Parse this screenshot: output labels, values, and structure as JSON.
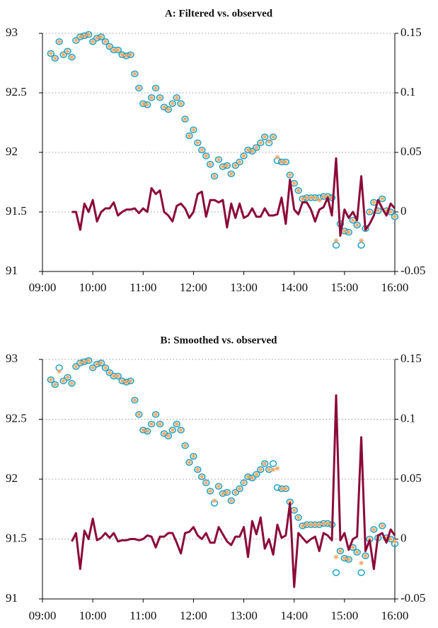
{
  "chart_data": [
    {
      "type": "combo",
      "title": "A: Filtered vs. observed",
      "x": [
        550,
        555,
        560,
        565,
        570,
        575,
        580,
        585,
        590,
        595,
        600,
        605,
        610,
        615,
        620,
        625,
        630,
        635,
        640,
        645,
        650,
        655,
        660,
        665,
        670,
        675,
        680,
        685,
        690,
        695,
        700,
        705,
        710,
        715,
        720,
        725,
        730,
        735,
        740,
        745,
        750,
        755,
        760,
        765,
        770,
        775,
        780,
        785,
        790,
        795,
        800,
        805,
        810,
        815,
        820,
        825,
        830,
        835,
        840,
        845,
        850,
        855,
        860,
        865,
        870,
        875,
        880,
        885,
        890,
        895,
        900,
        905,
        910,
        915,
        920,
        925,
        930,
        935,
        940,
        945,
        950,
        955,
        960
      ],
      "xlim": [
        540,
        960
      ],
      "xticks": [
        {
          "value": 540,
          "label": "09:00"
        },
        {
          "value": 600,
          "label": "10:00"
        },
        {
          "value": 660,
          "label": "11:00"
        },
        {
          "value": 720,
          "label": "12:00"
        },
        {
          "value": 780,
          "label": "13:00"
        },
        {
          "value": 840,
          "label": "14:00"
        },
        {
          "value": 900,
          "label": "15:00"
        },
        {
          "value": 960,
          "label": "16:00"
        }
      ],
      "ylim": [
        91,
        93
      ],
      "yticks": [
        91,
        91.5,
        92,
        92.5,
        93
      ],
      "y2lim": [
        -0.05,
        0.15
      ],
      "y2ticks": [
        -0.05,
        0,
        0.05,
        0.1,
        0.15
      ],
      "grid": true,
      "series": [
        {
          "type": "circle",
          "color": "#1ba3c6",
          "values": [
            92.83,
            92.79,
            92.93,
            92.82,
            92.85,
            92.8,
            92.94,
            92.97,
            92.98,
            92.99,
            92.93,
            92.96,
            92.97,
            92.93,
            92.89,
            92.86,
            92.86,
            92.82,
            92.81,
            92.82,
            92.66,
            92.54,
            92.41,
            92.4,
            92.46,
            92.54,
            92.46,
            92.38,
            92.36,
            92.41,
            92.46,
            92.41,
            92.28,
            92.14,
            92.19,
            92.08,
            92.02,
            91.97,
            91.9,
            91.8,
            91.94,
            91.88,
            91.89,
            91.82,
            91.89,
            91.92,
            91.97,
            92.02,
            92.01,
            92.04,
            92.08,
            92.13,
            92.08,
            92.13,
            91.93,
            91.92,
            91.92,
            91.81,
            91.74,
            91.68,
            91.61,
            91.62,
            91.62,
            91.62,
            91.62,
            91.63,
            91.63,
            91.62,
            91.22,
            91.4,
            91.34,
            91.33,
            91.43,
            91.39,
            91.22,
            91.36,
            91.5,
            91.58,
            91.51,
            91.61,
            91.51,
            91.5,
            91.46
          ]
        },
        {
          "type": "asterisk",
          "color": "#f4a460",
          "values": [
            92.83,
            92.79,
            92.93,
            92.82,
            92.85,
            92.8,
            92.94,
            92.97,
            92.98,
            92.99,
            92.93,
            92.96,
            92.97,
            92.93,
            92.89,
            92.86,
            92.86,
            92.82,
            92.81,
            92.82,
            92.66,
            92.54,
            92.41,
            92.4,
            92.46,
            92.54,
            92.46,
            92.38,
            92.36,
            92.41,
            92.46,
            92.41,
            92.28,
            92.14,
            92.19,
            92.08,
            92.02,
            91.97,
            91.9,
            91.8,
            91.94,
            91.88,
            91.89,
            91.82,
            91.89,
            91.92,
            91.97,
            92.02,
            92.01,
            92.04,
            92.08,
            92.13,
            92.09,
            92.13,
            91.96,
            91.92,
            91.92,
            91.81,
            91.74,
            91.68,
            91.61,
            91.62,
            91.62,
            91.62,
            91.6,
            91.63,
            91.63,
            91.62,
            91.26,
            91.4,
            91.34,
            91.33,
            91.43,
            91.39,
            91.26,
            91.36,
            91.5,
            91.58,
            91.51,
            91.61,
            91.51,
            91.5,
            91.46
          ]
        },
        {
          "type": "line",
          "axis": "y2",
          "color": "#8b0a3a",
          "values": [
            null,
            null,
            null,
            null,
            null,
            0,
            0,
            -0.015,
            0.007,
            0,
            0.01,
            -0.008,
            0,
            0.003,
            0.003,
            0.008,
            -0.003,
            0,
            0.002,
            0.002,
            0.003,
            -0.001,
            0.003,
            0,
            0.02,
            0.015,
            0.018,
            0,
            -0.003,
            -0.008,
            0.005,
            0.007,
            0.003,
            -0.005,
            0,
            0.015,
            0.017,
            -0.004,
            0.01,
            0.01,
            0.008,
            0.01,
            -0.013,
            0.007,
            -0.005,
            0.007,
            -0.005,
            -0.003,
            0.003,
            -0.004,
            -0.004,
            0.003,
            -0.003,
            -0.003,
            -0.002,
            0.012,
            -0.01,
            0.027,
            0.002,
            -0.002,
            0.008,
            0.008,
            0.002,
            -0.008,
            0.002,
            0.004,
            0.012,
            -0.003,
            0.045,
            -0.02,
            0.002,
            -0.005,
            0,
            -0.007,
            0.03,
            -0.015,
            -0.01,
            -0.003,
            0.01,
            0.003,
            -0.003,
            0.007,
            0.003
          ]
        }
      ]
    },
    {
      "type": "combo",
      "title": "B: Smoothed vs. observed",
      "x": [
        550,
        555,
        560,
        565,
        570,
        575,
        580,
        585,
        590,
        595,
        600,
        605,
        610,
        615,
        620,
        625,
        630,
        635,
        640,
        645,
        650,
        655,
        660,
        665,
        670,
        675,
        680,
        685,
        690,
        695,
        700,
        705,
        710,
        715,
        720,
        725,
        730,
        735,
        740,
        745,
        750,
        755,
        760,
        765,
        770,
        775,
        780,
        785,
        790,
        795,
        800,
        805,
        810,
        815,
        820,
        825,
        830,
        835,
        840,
        845,
        850,
        855,
        860,
        865,
        870,
        875,
        880,
        885,
        890,
        895,
        900,
        905,
        910,
        915,
        920,
        925,
        930,
        935,
        940,
        945,
        950,
        955,
        960
      ],
      "xlim": [
        540,
        960
      ],
      "xticks": [
        {
          "value": 540,
          "label": "09:00"
        },
        {
          "value": 600,
          "label": "10:00"
        },
        {
          "value": 660,
          "label": "11:00"
        },
        {
          "value": 720,
          "label": "12:00"
        },
        {
          "value": 780,
          "label": "13:00"
        },
        {
          "value": 840,
          "label": "14:00"
        },
        {
          "value": 900,
          "label": "15:00"
        },
        {
          "value": 960,
          "label": "16:00"
        }
      ],
      "ylim": [
        91,
        93
      ],
      "yticks": [
        91,
        91.5,
        92,
        92.5,
        93
      ],
      "y2lim": [
        -0.05,
        0.15
      ],
      "y2ticks": [
        -0.05,
        0,
        0.05,
        0.1,
        0.15
      ],
      "grid": true,
      "series": [
        {
          "type": "circle",
          "color": "#1ba3c6",
          "values": [
            92.83,
            92.79,
            92.93,
            92.82,
            92.85,
            92.8,
            92.94,
            92.97,
            92.98,
            92.99,
            92.93,
            92.96,
            92.97,
            92.93,
            92.89,
            92.86,
            92.86,
            92.82,
            92.81,
            92.82,
            92.66,
            92.54,
            92.41,
            92.4,
            92.46,
            92.54,
            92.46,
            92.38,
            92.36,
            92.41,
            92.46,
            92.41,
            92.28,
            92.14,
            92.19,
            92.08,
            92.02,
            91.97,
            91.9,
            91.8,
            91.94,
            91.88,
            91.89,
            91.82,
            91.89,
            91.92,
            91.97,
            92.02,
            92.01,
            92.04,
            92.08,
            92.13,
            92.08,
            92.13,
            91.93,
            91.92,
            91.92,
            91.81,
            91.74,
            91.68,
            91.61,
            91.62,
            91.62,
            91.62,
            91.62,
            91.63,
            91.63,
            91.62,
            91.22,
            91.4,
            91.34,
            91.33,
            91.43,
            91.39,
            91.22,
            91.36,
            91.5,
            91.58,
            91.51,
            91.61,
            91.51,
            91.5,
            91.46
          ]
        },
        {
          "type": "asterisk",
          "color": "#f4a460",
          "values": [
            92.83,
            92.79,
            92.9,
            92.82,
            92.85,
            92.8,
            92.94,
            92.97,
            92.98,
            92.99,
            92.93,
            92.96,
            92.97,
            92.93,
            92.89,
            92.86,
            92.86,
            92.82,
            92.81,
            92.82,
            92.66,
            92.54,
            92.41,
            92.4,
            92.46,
            92.54,
            92.46,
            92.38,
            92.36,
            92.41,
            92.46,
            92.41,
            92.28,
            92.14,
            92.19,
            92.08,
            92.02,
            91.97,
            91.9,
            91.82,
            91.94,
            91.88,
            91.89,
            91.82,
            91.89,
            91.92,
            91.97,
            92.02,
            92.01,
            92.04,
            92.08,
            92.13,
            92.08,
            92.08,
            92.09,
            91.92,
            91.92,
            91.81,
            91.74,
            91.68,
            91.61,
            91.62,
            91.62,
            91.62,
            91.62,
            91.63,
            91.63,
            91.62,
            91.35,
            91.4,
            91.34,
            91.33,
            91.43,
            91.39,
            91.3,
            91.36,
            91.5,
            91.58,
            91.51,
            91.61,
            91.51,
            91.5,
            91.48
          ]
        },
        {
          "type": "line",
          "axis": "y2",
          "color": "#8b0a3a",
          "values": [
            null,
            null,
            null,
            null,
            null,
            -0.002,
            0.005,
            -0.025,
            0.007,
            0,
            0.017,
            -0.001,
            0.001,
            0.005,
            0.001,
            0.005,
            -0.002,
            -0.001,
            -0.001,
            0,
            0,
            -0.001,
            0,
            0.003,
            0.002,
            -0.007,
            0.002,
            0.002,
            0.005,
            0.005,
            -0.003,
            -0.012,
            0.005,
            0.006,
            0.01,
            0.003,
            0,
            0.005,
            -0.003,
            -0.003,
            0.01,
            0.004,
            -0.002,
            -0.005,
            0.002,
            0.002,
            0.01,
            -0.015,
            0.015,
            0.004,
            0.018,
            -0.008,
            0,
            -0.013,
            0.012,
            0.001,
            0.003,
            0.03,
            -0.04,
            0.005,
            0.001,
            -0.003,
            0,
            0.002,
            -0.01,
            0.005,
            0.003,
            -0.001,
            0.12,
            -0.001,
            0.005,
            -0.009,
            0,
            0.002,
            0.085,
            -0.01,
            -0.001,
            -0.025,
            0.003,
            0.005,
            -0.003,
            0.008,
            0.003
          ]
        }
      ]
    }
  ]
}
